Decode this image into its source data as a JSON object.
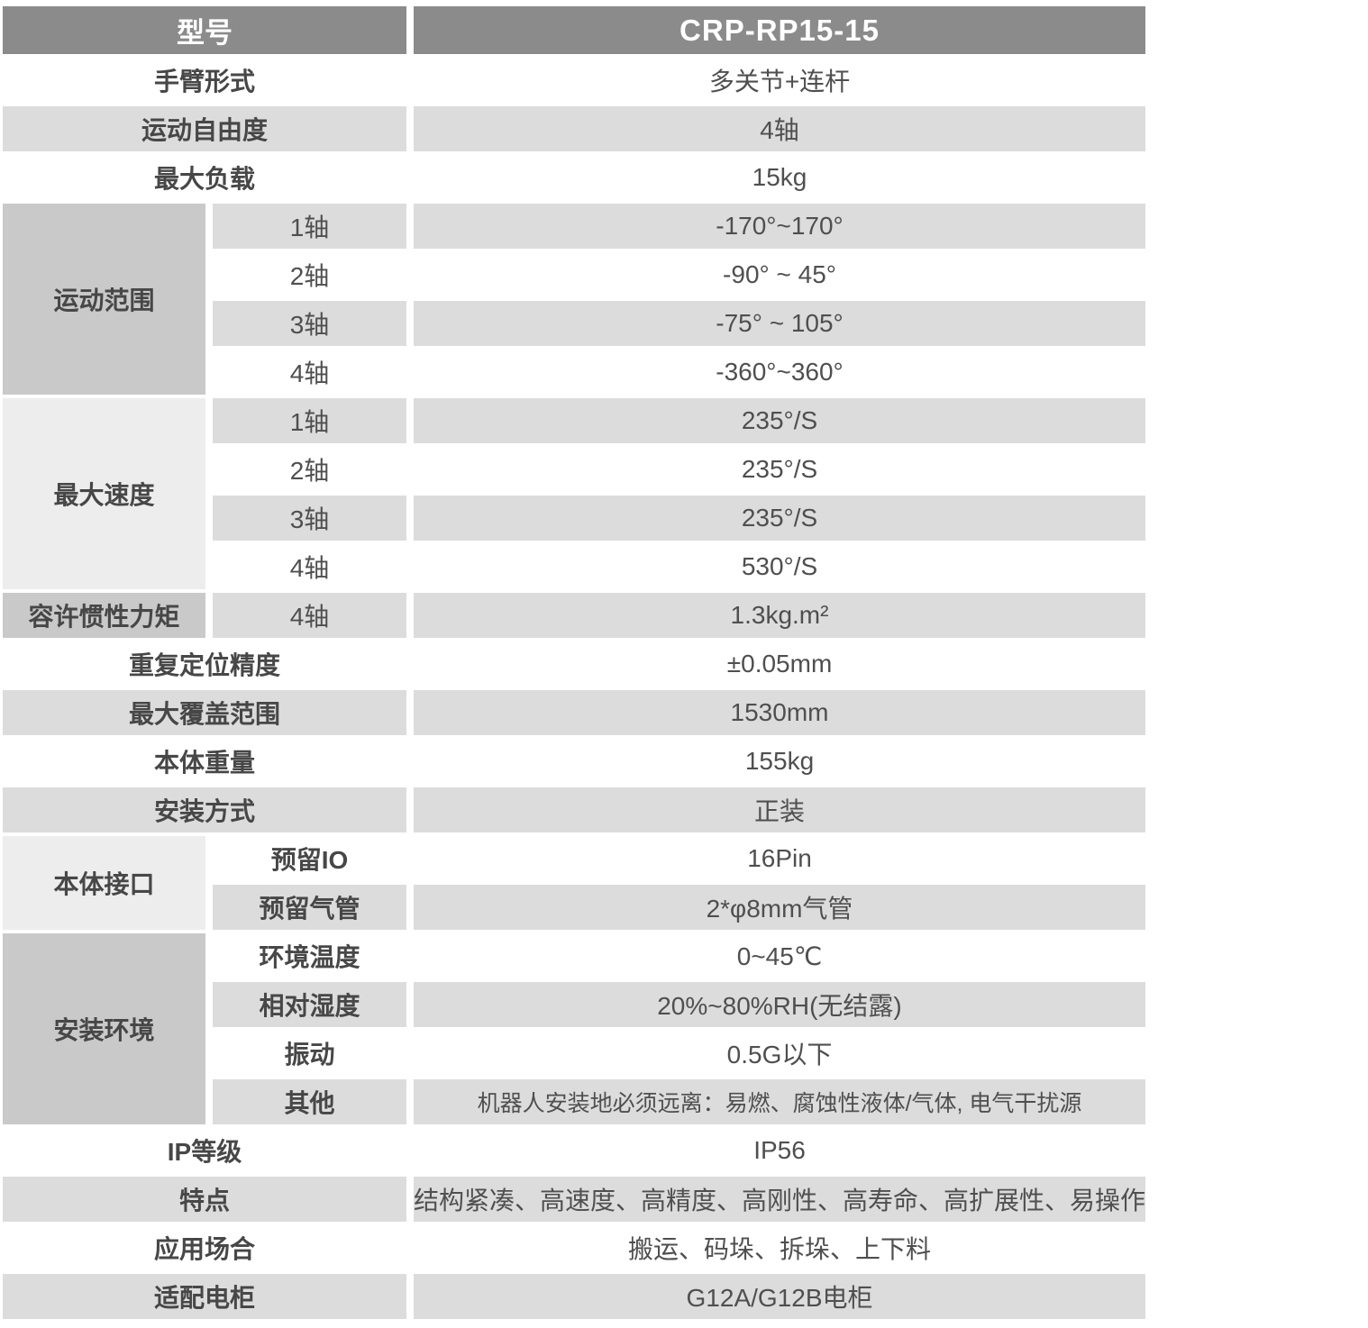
{
  "colors": {
    "header_bg": "#8b8b8b",
    "header_text": "#ffffff",
    "row_gray": "#dcdcdc",
    "row_white": "#ffffff",
    "group_cell_medium": "#c9c9c9",
    "group_cell_light": "#ededed",
    "label_text": "#474747",
    "value_text": "#4f4f4f"
  },
  "table": {
    "header": {
      "label": "型号",
      "value": "CRP-RP15-15"
    },
    "rows": [
      {
        "label": "手臂形式",
        "value": "多关节+连杆"
      },
      {
        "label": "运动自由度",
        "value": "4轴"
      },
      {
        "label": "最大负载",
        "value": "15kg"
      },
      {
        "group": "运动范围",
        "sub": "1轴",
        "value": "-170°~170°"
      },
      {
        "sub": "2轴",
        "value": "-90° ~ 45°"
      },
      {
        "sub": "3轴",
        "value": "-75° ~ 105°"
      },
      {
        "sub": "4轴",
        "value": "-360°~360°"
      },
      {
        "group": "最大速度",
        "sub": "1轴",
        "value": "235°/S"
      },
      {
        "sub": "2轴",
        "value": "235°/S"
      },
      {
        "sub": "3轴",
        "value": "235°/S"
      },
      {
        "sub": "4轴",
        "value": "530°/S"
      },
      {
        "group": "容许惯性力矩",
        "sub": "4轴",
        "value": "1.3kg.m²"
      },
      {
        "label": "重复定位精度",
        "value": "±0.05mm"
      },
      {
        "label": "最大覆盖范围",
        "value": "1530mm"
      },
      {
        "label": "本体重量",
        "value": "155kg"
      },
      {
        "label": "安装方式",
        "value": "正装"
      },
      {
        "group": "本体接口",
        "sub": "预留IO",
        "value": "16Pin"
      },
      {
        "sub": "预留气管",
        "value": "2*φ8mm气管"
      },
      {
        "group": "安装环境",
        "sub": "环境温度",
        "value": "0~45℃"
      },
      {
        "sub": "相对湿度",
        "value": "20%~80%RH(无结露)"
      },
      {
        "sub": "振动",
        "value": "0.5G以下"
      },
      {
        "sub": "其他",
        "value": "机器人安装地必须远离：易燃、腐蚀性液体/气体, 电气干扰源"
      },
      {
        "label": "IP等级",
        "value": "IP56"
      },
      {
        "label": "特点",
        "value": "结构紧凑、高速度、高精度、高刚性、高寿命、高扩展性、易操作"
      },
      {
        "label": "应用场合",
        "value": "搬运、码垛、拆垛、上下料"
      },
      {
        "label": "适配电柜",
        "value": "G12A/G12B电柜"
      }
    ]
  }
}
